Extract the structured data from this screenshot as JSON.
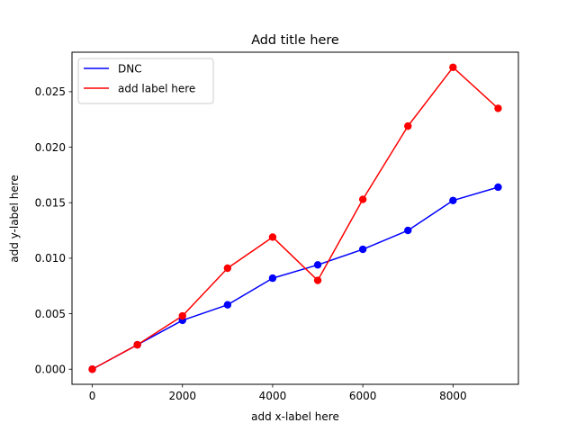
{
  "chart_data": {
    "type": "line",
    "title": "Add title here",
    "xlabel": "add x-label here",
    "ylabel": "add y-label here",
    "x": [
      0,
      1000,
      2000,
      3000,
      4000,
      5000,
      6000,
      7000,
      8000,
      9000
    ],
    "xlim": [
      -450,
      9450
    ],
    "ylim": [
      -0.00136,
      0.02856
    ],
    "xticks": [
      0,
      2000,
      4000,
      6000,
      8000
    ],
    "xtick_labels": [
      "0",
      "2000",
      "4000",
      "6000",
      "8000"
    ],
    "yticks": [
      0.0,
      0.005,
      0.01,
      0.015,
      0.02,
      0.025
    ],
    "ytick_labels": [
      "0.000",
      "0.005",
      "0.010",
      "0.015",
      "0.020",
      "0.025"
    ],
    "grid": false,
    "legend_position": "top-left",
    "series": [
      {
        "name": "DNC",
        "color": "#0000ff",
        "marker": "circle",
        "values": [
          0.0,
          0.0022,
          0.0044,
          0.0058,
          0.0082,
          0.0094,
          0.0108,
          0.0125,
          0.0152,
          0.0164
        ]
      },
      {
        "name": "add label here",
        "color": "#ff0000",
        "marker": "circle",
        "values": [
          0.0,
          0.0022,
          0.0048,
          0.0091,
          0.0119,
          0.008,
          0.0153,
          0.0219,
          0.0272,
          0.0235
        ]
      }
    ]
  }
}
